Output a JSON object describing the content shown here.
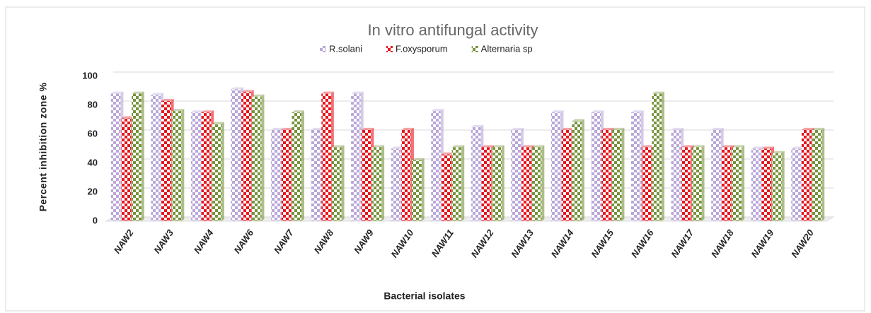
{
  "chart_data": {
    "type": "bar",
    "title": "In vitro antifungal activity",
    "x_label": "Bacterial isolates",
    "y_label": "Percent inhibition  zone %",
    "categories": [
      "NAW2",
      "NAW3",
      "NAW4",
      "NAW6",
      "NAW7",
      "NAW8",
      "NAW9",
      "NAW10",
      "NAW11",
      "NAW12",
      "NAW13",
      "NAW14",
      "NAW15",
      "NAW16",
      "NAW17",
      "NAW18",
      "NAW19",
      "NAW20"
    ],
    "series": [
      {
        "name": "R.solani",
        "color": "#b9a7d8",
        "values": [
          88,
          87,
          75,
          91,
          63,
          63,
          88,
          50,
          76,
          65,
          63,
          75,
          75,
          75,
          63,
          63,
          50,
          50
        ]
      },
      {
        "name": "F.oxysporum",
        "color": "#e8141c",
        "values": [
          71,
          83,
          75,
          89,
          63,
          88,
          63,
          63,
          46,
          51,
          51,
          63,
          63,
          51,
          51,
          51,
          50,
          63
        ]
      },
      {
        "name": "Alternaria sp",
        "color": "#77933c",
        "values": [
          88,
          76,
          67,
          86,
          75,
          51,
          51,
          42,
          51,
          51,
          51,
          69,
          63,
          88,
          51,
          51,
          47,
          63
        ]
      }
    ],
    "ylim": [
      0,
      100
    ],
    "yticks": [
      0,
      20,
      40,
      60,
      80,
      100
    ],
    "grid": true,
    "legend": "top"
  }
}
